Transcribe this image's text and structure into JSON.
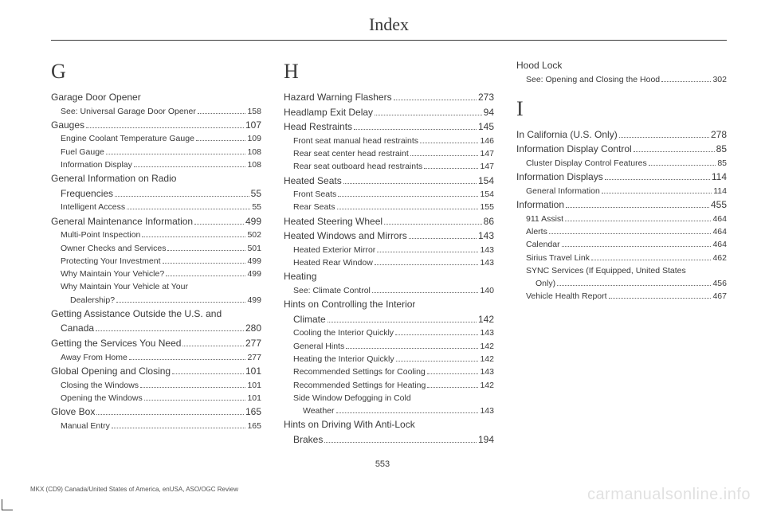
{
  "title": "Index",
  "pageNumber": "553",
  "footerLine": "MKX (CD9) Canada/United States of America, enUSA, ASO/OGC Review",
  "watermark": "carmanualsonline.info",
  "columns": [
    {
      "blocks": [
        {
          "type": "letter",
          "text": "G"
        },
        {
          "type": "entries",
          "items": [
            {
              "level": "main",
              "label": "Garage Door Opener",
              "page": ""
            },
            {
              "level": "sub",
              "label": "See: Universal Garage Door Opener",
              "page": "158"
            },
            {
              "level": "main",
              "label": "Gauges",
              "page": "107"
            },
            {
              "level": "sub",
              "label": "Engine Coolant Temperature Gauge",
              "page": "109"
            },
            {
              "level": "sub",
              "label": "Fuel Gauge",
              "page": "108"
            },
            {
              "level": "sub",
              "label": "Information Display",
              "page": "108"
            },
            {
              "level": "main",
              "label": "General Information on Radio",
              "page": ""
            },
            {
              "level": "main-cont",
              "label": "Frequencies",
              "page": "55"
            },
            {
              "level": "sub",
              "label": "Intelligent Access",
              "page": "55"
            },
            {
              "level": "main",
              "label": "General Maintenance Information",
              "page": "499"
            },
            {
              "level": "sub",
              "label": "Multi-Point Inspection",
              "page": "502"
            },
            {
              "level": "sub",
              "label": "Owner Checks and Services",
              "page": "501"
            },
            {
              "level": "sub",
              "label": "Protecting Your Investment",
              "page": "499"
            },
            {
              "level": "sub",
              "label": "Why Maintain Your Vehicle?",
              "page": "499"
            },
            {
              "level": "sub",
              "label": "Why Maintain Your Vehicle at Your",
              "page": ""
            },
            {
              "level": "sub-cont",
              "label": "Dealership?",
              "page": "499"
            },
            {
              "level": "main",
              "label": "Getting Assistance Outside the U.S. and",
              "page": ""
            },
            {
              "level": "main-cont",
              "label": "Canada",
              "page": "280"
            },
            {
              "level": "main",
              "label": "Getting the Services You Need",
              "page": "277"
            },
            {
              "level": "sub",
              "label": "Away From Home",
              "page": "277"
            },
            {
              "level": "main",
              "label": "Global Opening and Closing",
              "page": "101"
            },
            {
              "level": "sub",
              "label": "Closing the Windows",
              "page": "101"
            },
            {
              "level": "sub",
              "label": "Opening the Windows",
              "page": "101"
            },
            {
              "level": "main",
              "label": "Glove Box",
              "page": "165"
            },
            {
              "level": "sub",
              "label": "Manual Entry",
              "page": "165"
            }
          ]
        }
      ]
    },
    {
      "blocks": [
        {
          "type": "letter",
          "text": "H"
        },
        {
          "type": "entries",
          "items": [
            {
              "level": "main",
              "label": "Hazard Warning Flashers",
              "page": "273"
            },
            {
              "level": "main",
              "label": "Headlamp Exit Delay",
              "page": "94"
            },
            {
              "level": "main",
              "label": "Head Restraints",
              "page": "145"
            },
            {
              "level": "sub",
              "label": "Front seat manual head restraints",
              "page": "146"
            },
            {
              "level": "sub",
              "label": "Rear seat center head restraint",
              "page": "147"
            },
            {
              "level": "sub",
              "label": "Rear seat outboard head restraints",
              "page": "147"
            },
            {
              "level": "main",
              "label": "Heated Seats",
              "page": "154"
            },
            {
              "level": "sub",
              "label": "Front Seats",
              "page": "154"
            },
            {
              "level": "sub",
              "label": "Rear Seats",
              "page": "155"
            },
            {
              "level": "main",
              "label": "Heated Steering Wheel",
              "page": "86"
            },
            {
              "level": "main",
              "label": "Heated Windows and Mirrors",
              "page": "143"
            },
            {
              "level": "sub",
              "label": "Heated Exterior Mirror",
              "page": "143"
            },
            {
              "level": "sub",
              "label": "Heated Rear Window",
              "page": "143"
            },
            {
              "level": "main",
              "label": "Heating",
              "page": ""
            },
            {
              "level": "sub",
              "label": "See: Climate Control",
              "page": "140"
            },
            {
              "level": "main",
              "label": "Hints on Controlling the Interior",
              "page": ""
            },
            {
              "level": "main-cont",
              "label": "Climate",
              "page": "142"
            },
            {
              "level": "sub",
              "label": "Cooling the Interior Quickly",
              "page": "143"
            },
            {
              "level": "sub",
              "label": "General Hints",
              "page": "142"
            },
            {
              "level": "sub",
              "label": "Heating the Interior Quickly",
              "page": "142"
            },
            {
              "level": "sub",
              "label": "Recommended Settings for Cooling ",
              "page": "143"
            },
            {
              "level": "sub",
              "label": "Recommended Settings for Heating",
              "page": "142"
            },
            {
              "level": "sub",
              "label": "Side Window Defogging in Cold",
              "page": ""
            },
            {
              "level": "sub-cont",
              "label": "Weather",
              "page": "143"
            },
            {
              "level": "main",
              "label": "Hints on Driving With Anti-Lock",
              "page": ""
            },
            {
              "level": "main-cont",
              "label": "Brakes",
              "page": "194"
            }
          ]
        }
      ]
    },
    {
      "blocks": [
        {
          "type": "entries",
          "items": [
            {
              "level": "main",
              "label": "Hood Lock",
              "page": ""
            },
            {
              "level": "sub",
              "label": "See: Opening and Closing the Hood",
              "page": "302"
            }
          ]
        },
        {
          "type": "letter",
          "text": "I",
          "gapTop": true
        },
        {
          "type": "entries",
          "items": [
            {
              "level": "main",
              "label": "In California (U.S. Only)",
              "page": "278"
            },
            {
              "level": "main",
              "label": "Information Display Control",
              "page": "85"
            },
            {
              "level": "sub",
              "label": "Cluster Display Control Features",
              "page": "85"
            },
            {
              "level": "main",
              "label": "Information Displays",
              "page": "114"
            },
            {
              "level": "sub",
              "label": "General Information",
              "page": "114"
            },
            {
              "level": "main",
              "label": "Information",
              "page": "455"
            },
            {
              "level": "sub",
              "label": "911 Assist",
              "page": "464"
            },
            {
              "level": "sub",
              "label": "Alerts",
              "page": "464"
            },
            {
              "level": "sub",
              "label": "Calendar",
              "page": "464"
            },
            {
              "level": "sub",
              "label": "Sirius Travel Link",
              "page": "462"
            },
            {
              "level": "sub",
              "label": "SYNC Services (If Equipped, United States",
              "page": ""
            },
            {
              "level": "sub-cont",
              "label": "Only)",
              "page": "456"
            },
            {
              "level": "sub",
              "label": "Vehicle Health Report",
              "page": "467"
            }
          ]
        }
      ]
    }
  ]
}
